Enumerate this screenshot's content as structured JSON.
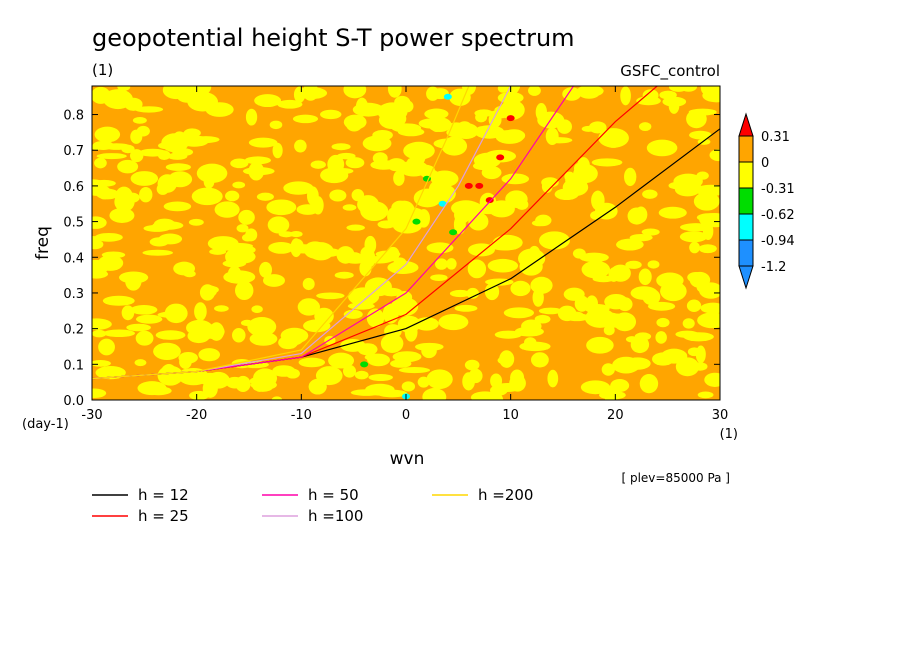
{
  "chart_data": {
    "type": "heatmap",
    "title": "geopotential height S-T power spectrum",
    "subtitle_units": "(1)",
    "dataset_label": "GSFC_control",
    "xlabel": "wvn",
    "xunits": "(1)",
    "ylabel": "freq",
    "yunits": "(day-1)",
    "xlim": [
      -30,
      30
    ],
    "ylim": [
      0,
      0.88
    ],
    "xticks": [
      -30,
      -20,
      -10,
      0,
      10,
      20,
      30
    ],
    "xtick_labels": [
      "-30",
      "-20",
      "-10",
      "0",
      "10",
      "20",
      "30"
    ],
    "yticks": [
      0,
      0.1,
      0.2,
      0.3,
      0.4,
      0.5,
      0.6,
      0.7,
      0.8
    ],
    "ytick_labels": [
      "0.0",
      "0.1",
      "0.2",
      "0.3",
      "0.4",
      "0.5",
      "0.6",
      "0.7",
      "0.8"
    ],
    "colorbar": {
      "levels": [
        "0.31",
        "0",
        "-0.31",
        "-0.62",
        "-0.94",
        "-1.2"
      ],
      "colors": [
        "#ff0000",
        "#ffa500",
        "#ffff00",
        "#00dd00",
        "#00ffff",
        "#1e90ff",
        "#1e90ff"
      ]
    },
    "field_description_colors": {
      "dominant": [
        "#ffa500",
        "#ffff00"
      ],
      "rare": [
        "#ff0000",
        "#00dd00",
        "#00ffff"
      ]
    },
    "series": [
      {
        "name": "h = 12",
        "color": "#000000",
        "x": [
          -30,
          -20,
          -10,
          0,
          10,
          20,
          30
        ],
        "y": [
          0.06,
          0.08,
          0.12,
          0.2,
          0.34,
          0.54,
          0.76
        ]
      },
      {
        "name": "h = 25",
        "color": "#ff0000",
        "x": [
          -30,
          -20,
          -10,
          0,
          10,
          20,
          24
        ],
        "y": [
          0.06,
          0.08,
          0.12,
          0.24,
          0.48,
          0.78,
          0.88
        ]
      },
      {
        "name": "h = 50",
        "color": "#ff00aa",
        "x": [
          -30,
          -20,
          -10,
          0,
          10,
          16
        ],
        "y": [
          0.06,
          0.08,
          0.12,
          0.3,
          0.62,
          0.88
        ]
      },
      {
        "name": "h =100",
        "color": "#dda0dd",
        "x": [
          -30,
          -20,
          -10,
          0,
          5,
          10
        ],
        "y": [
          0.06,
          0.08,
          0.13,
          0.38,
          0.6,
          0.88
        ]
      },
      {
        "name": "h =200",
        "color": "#ffd700",
        "x": [
          -30,
          -20,
          -10,
          0,
          4,
          6
        ],
        "y": [
          0.06,
          0.08,
          0.14,
          0.48,
          0.74,
          0.88
        ]
      }
    ],
    "legend_placement": "bottom",
    "footnote": "[ plev=85000 Pa ]",
    "grid": false
  }
}
